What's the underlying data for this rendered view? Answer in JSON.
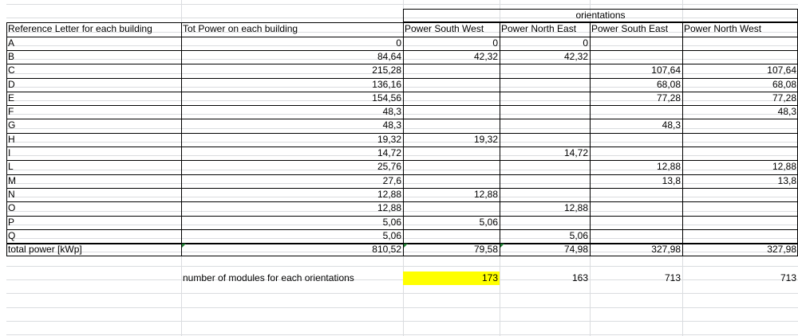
{
  "spreadsheet": {
    "header_group": "orientations",
    "columns": [
      "Reference Letter for each building",
      "Tot Power on each building",
      "Power South West",
      "Power North East",
      "Power South East",
      "Power North West"
    ],
    "rows": [
      {
        "ref": "A",
        "tot": "0",
        "sw": "0",
        "ne": "0",
        "se": "",
        "nw": ""
      },
      {
        "ref": "B",
        "tot": "84,64",
        "sw": "42,32",
        "ne": "42,32",
        "se": "",
        "nw": ""
      },
      {
        "ref": "C",
        "tot": "215,28",
        "sw": "",
        "ne": "",
        "se": "107,64",
        "nw": "107,64"
      },
      {
        "ref": "D",
        "tot": "136,16",
        "sw": "",
        "ne": "",
        "se": "68,08",
        "nw": "68,08"
      },
      {
        "ref": "E",
        "tot": "154,56",
        "sw": "",
        "ne": "",
        "se": "77,28",
        "nw": "77,28"
      },
      {
        "ref": "F",
        "tot": "48,3",
        "sw": "",
        "ne": "",
        "se": "",
        "nw": "48,3"
      },
      {
        "ref": "G",
        "tot": "48,3",
        "sw": "",
        "ne": "",
        "se": "48,3",
        "nw": ""
      },
      {
        "ref": "H",
        "tot": "19,32",
        "sw": "19,32",
        "ne": "",
        "se": "",
        "nw": ""
      },
      {
        "ref": "I",
        "tot": "14,72",
        "sw": "",
        "ne": "14,72",
        "se": "",
        "nw": ""
      },
      {
        "ref": "L",
        "tot": "25,76",
        "sw": "",
        "ne": "",
        "se": "12,88",
        "nw": "12,88"
      },
      {
        "ref": "M",
        "tot": "27,6",
        "sw": "",
        "ne": "",
        "se": "13,8",
        "nw": "13,8"
      },
      {
        "ref": "N",
        "tot": "12,88",
        "sw": "12,88",
        "ne": "",
        "se": "",
        "nw": ""
      },
      {
        "ref": "O",
        "tot": "12,88",
        "sw": "",
        "ne": "12,88",
        "se": "",
        "nw": ""
      },
      {
        "ref": "P",
        "tot": "5,06",
        "sw": "5,06",
        "ne": "",
        "se": "",
        "nw": ""
      },
      {
        "ref": "Q",
        "tot": "5,06",
        "sw": "",
        "ne": "5,06",
        "se": "",
        "nw": ""
      }
    ],
    "total": {
      "label": "total power [kWp]",
      "tot": "810,52",
      "sw": "79,58",
      "ne": "74,98",
      "se": "327,98",
      "nw": "327,98"
    },
    "modules": {
      "label": "number of modules for each orientations",
      "sw": "173",
      "ne": "163",
      "se": "713",
      "nw": "713"
    },
    "colors": {
      "highlight": "#ffff00",
      "gridline": "#dadcdf",
      "error_indicator": "#1e7d32"
    }
  }
}
